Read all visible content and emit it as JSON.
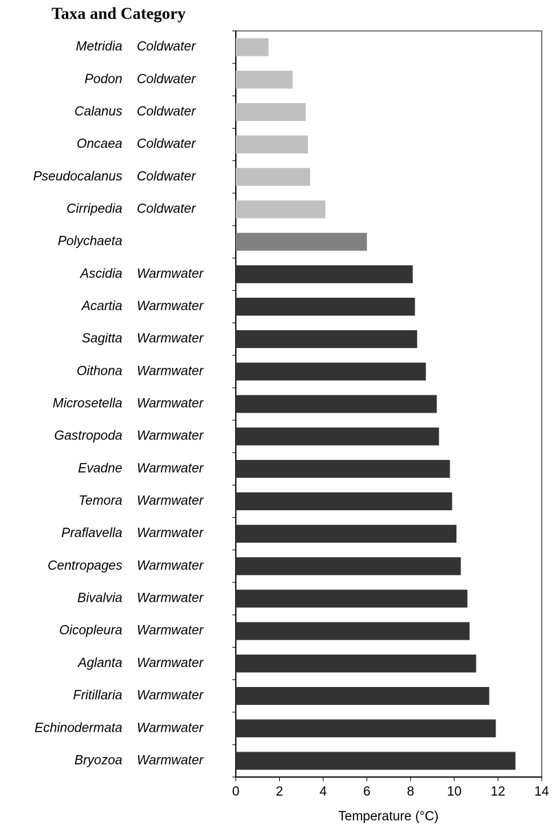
{
  "chart_data": {
    "type": "bar",
    "orientation": "horizontal",
    "title": "Taxa and Category",
    "xlabel": "Temperature (°C)",
    "categories": [
      "Metridia",
      "Podon",
      "Calanus",
      "Oncaea",
      "Pseudocalanus",
      "Cirripedia",
      "Polychaeta",
      "Ascidia",
      "Acartia",
      "Sagitta",
      "Oithona",
      "Microsetella",
      "Gastropoda",
      "Evadne",
      "Temora",
      "Praflavella",
      "Centropages",
      "Bivalvia",
      "Oicopleura",
      "Aglanta",
      "Fritillaria",
      "Echinodermata",
      "Bryozoa"
    ],
    "category_groups": [
      "Coldwater",
      "Coldwater",
      "Coldwater",
      "Coldwater",
      "Coldwater",
      "Coldwater",
      null,
      "Warmwater",
      "Warmwater",
      "Warmwater",
      "Warmwater",
      "Warmwater",
      "Warmwater",
      "Warmwater",
      "Warmwater",
      "Warmwater",
      "Warmwater",
      "Warmwater",
      "Warmwater",
      "Warmwater",
      "Warmwater",
      "Warmwater",
      "Warmwater"
    ],
    "values": [
      1.5,
      2.6,
      3.2,
      3.3,
      3.4,
      4.1,
      6.0,
      8.1,
      8.2,
      8.3,
      8.7,
      9.2,
      9.3,
      9.8,
      9.9,
      10.1,
      10.3,
      10.6,
      10.7,
      11.0,
      11.6,
      11.9,
      12.8
    ],
    "colors": [
      "#c0c0c0",
      "#c0c0c0",
      "#c0c0c0",
      "#c0c0c0",
      "#c0c0c0",
      "#c0c0c0",
      "#808080",
      "#333333",
      "#333333",
      "#333333",
      "#333333",
      "#333333",
      "#333333",
      "#333333",
      "#333333",
      "#333333",
      "#333333",
      "#333333",
      "#333333",
      "#333333",
      "#333333",
      "#333333",
      "#333333"
    ],
    "xlim": [
      0,
      14
    ],
    "xticks": [
      0,
      2,
      4,
      6,
      8,
      10,
      12,
      14
    ]
  }
}
